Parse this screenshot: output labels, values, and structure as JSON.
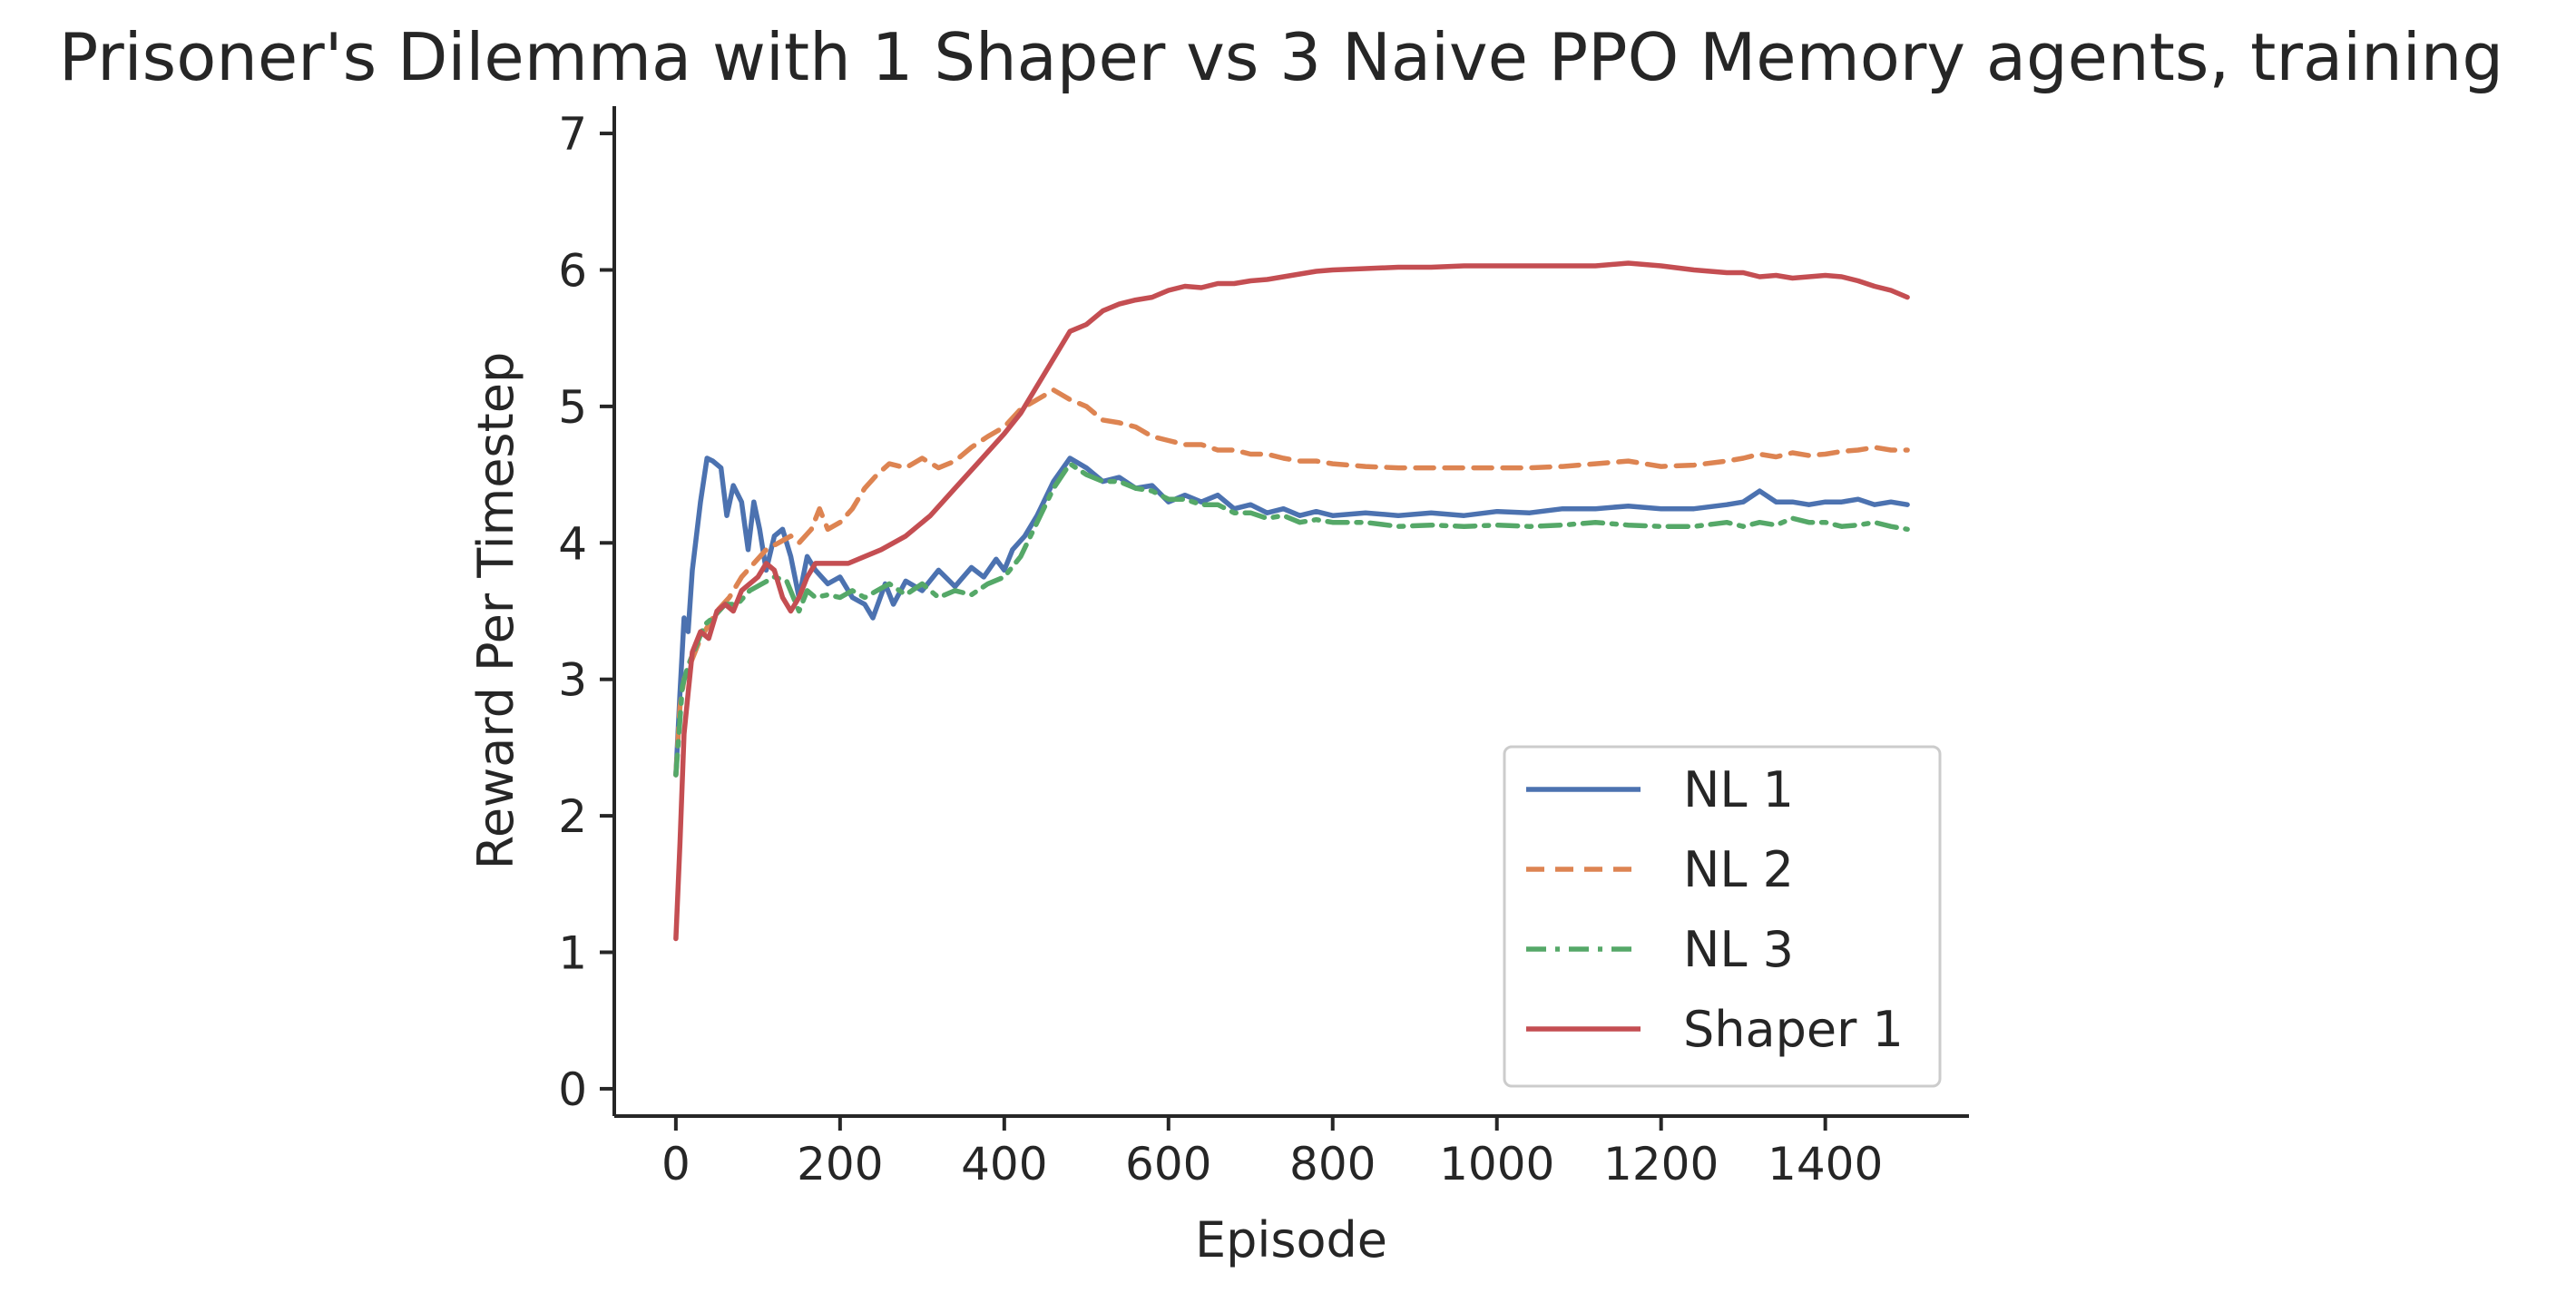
{
  "chart_data": {
    "type": "line",
    "title": "Prisoner's Dilemma with 1 Shaper vs 3 Naive PPO Memory agents, training",
    "xlabel": "Episode",
    "ylabel": "Reward Per Timestep",
    "xlim": [
      -75,
      1575
    ],
    "ylim": [
      -0.2,
      7.2
    ],
    "xticks": [
      0,
      200,
      400,
      600,
      800,
      1000,
      1200,
      1400
    ],
    "yticks": [
      0,
      1,
      2,
      3,
      4,
      5,
      6,
      7
    ],
    "grid": false,
    "legend_position": "lower-right",
    "series": [
      {
        "name": "NL 1",
        "color": "#4c72b0",
        "dash": "solid",
        "points": [
          [
            0,
            2.3
          ],
          [
            5,
            2.9
          ],
          [
            10,
            3.45
          ],
          [
            15,
            3.35
          ],
          [
            20,
            3.8
          ],
          [
            30,
            4.3
          ],
          [
            38,
            4.62
          ],
          [
            45,
            4.6
          ],
          [
            55,
            4.55
          ],
          [
            62,
            4.2
          ],
          [
            70,
            4.42
          ],
          [
            80,
            4.3
          ],
          [
            88,
            3.95
          ],
          [
            95,
            4.3
          ],
          [
            102,
            4.1
          ],
          [
            110,
            3.8
          ],
          [
            120,
            4.05
          ],
          [
            130,
            4.1
          ],
          [
            140,
            3.9
          ],
          [
            150,
            3.6
          ],
          [
            160,
            3.9
          ],
          [
            170,
            3.8
          ],
          [
            185,
            3.7
          ],
          [
            200,
            3.75
          ],
          [
            215,
            3.6
          ],
          [
            230,
            3.55
          ],
          [
            240,
            3.45
          ],
          [
            255,
            3.7
          ],
          [
            265,
            3.55
          ],
          [
            280,
            3.72
          ],
          [
            300,
            3.65
          ],
          [
            320,
            3.8
          ],
          [
            340,
            3.68
          ],
          [
            360,
            3.82
          ],
          [
            375,
            3.75
          ],
          [
            390,
            3.88
          ],
          [
            400,
            3.8
          ],
          [
            410,
            3.95
          ],
          [
            425,
            4.05
          ],
          [
            440,
            4.2
          ],
          [
            460,
            4.45
          ],
          [
            480,
            4.62
          ],
          [
            500,
            4.55
          ],
          [
            520,
            4.45
          ],
          [
            540,
            4.48
          ],
          [
            560,
            4.4
          ],
          [
            580,
            4.42
          ],
          [
            600,
            4.3
          ],
          [
            620,
            4.35
          ],
          [
            640,
            4.3
          ],
          [
            660,
            4.35
          ],
          [
            680,
            4.25
          ],
          [
            700,
            4.28
          ],
          [
            720,
            4.22
          ],
          [
            740,
            4.25
          ],
          [
            760,
            4.2
          ],
          [
            780,
            4.23
          ],
          [
            800,
            4.2
          ],
          [
            840,
            4.22
          ],
          [
            880,
            4.2
          ],
          [
            920,
            4.22
          ],
          [
            960,
            4.2
          ],
          [
            1000,
            4.23
          ],
          [
            1040,
            4.22
          ],
          [
            1080,
            4.25
          ],
          [
            1120,
            4.25
          ],
          [
            1160,
            4.27
          ],
          [
            1200,
            4.25
          ],
          [
            1240,
            4.25
          ],
          [
            1280,
            4.28
          ],
          [
            1300,
            4.3
          ],
          [
            1320,
            4.38
          ],
          [
            1340,
            4.3
          ],
          [
            1360,
            4.3
          ],
          [
            1380,
            4.28
          ],
          [
            1400,
            4.3
          ],
          [
            1420,
            4.3
          ],
          [
            1440,
            4.32
          ],
          [
            1460,
            4.28
          ],
          [
            1480,
            4.3
          ],
          [
            1500,
            4.28
          ]
        ]
      },
      {
        "name": "NL 2",
        "color": "#dd8452",
        "dash": "dashed",
        "points": [
          [
            0,
            2.3
          ],
          [
            5,
            2.8
          ],
          [
            10,
            3.0
          ],
          [
            20,
            3.15
          ],
          [
            30,
            3.3
          ],
          [
            40,
            3.4
          ],
          [
            50,
            3.5
          ],
          [
            65,
            3.6
          ],
          [
            80,
            3.75
          ],
          [
            95,
            3.85
          ],
          [
            110,
            3.95
          ],
          [
            125,
            4.0
          ],
          [
            140,
            4.05
          ],
          [
            150,
            4.0
          ],
          [
            165,
            4.1
          ],
          [
            175,
            4.25
          ],
          [
            185,
            4.1
          ],
          [
            200,
            4.15
          ],
          [
            215,
            4.25
          ],
          [
            230,
            4.4
          ],
          [
            245,
            4.5
          ],
          [
            260,
            4.58
          ],
          [
            280,
            4.55
          ],
          [
            300,
            4.62
          ],
          [
            320,
            4.55
          ],
          [
            340,
            4.6
          ],
          [
            360,
            4.7
          ],
          [
            380,
            4.78
          ],
          [
            400,
            4.85
          ],
          [
            420,
            4.98
          ],
          [
            440,
            5.05
          ],
          [
            460,
            5.12
          ],
          [
            480,
            5.05
          ],
          [
            500,
            5.0
          ],
          [
            520,
            4.9
          ],
          [
            540,
            4.88
          ],
          [
            560,
            4.85
          ],
          [
            580,
            4.78
          ],
          [
            600,
            4.75
          ],
          [
            620,
            4.72
          ],
          [
            640,
            4.72
          ],
          [
            660,
            4.68
          ],
          [
            680,
            4.68
          ],
          [
            700,
            4.65
          ],
          [
            720,
            4.65
          ],
          [
            740,
            4.62
          ],
          [
            760,
            4.6
          ],
          [
            780,
            4.6
          ],
          [
            800,
            4.58
          ],
          [
            840,
            4.56
          ],
          [
            880,
            4.55
          ],
          [
            920,
            4.55
          ],
          [
            960,
            4.55
          ],
          [
            1000,
            4.55
          ],
          [
            1040,
            4.55
          ],
          [
            1080,
            4.56
          ],
          [
            1120,
            4.58
          ],
          [
            1160,
            4.6
          ],
          [
            1200,
            4.56
          ],
          [
            1240,
            4.57
          ],
          [
            1280,
            4.6
          ],
          [
            1300,
            4.62
          ],
          [
            1320,
            4.65
          ],
          [
            1340,
            4.63
          ],
          [
            1360,
            4.66
          ],
          [
            1380,
            4.64
          ],
          [
            1400,
            4.65
          ],
          [
            1420,
            4.67
          ],
          [
            1440,
            4.68
          ],
          [
            1460,
            4.7
          ],
          [
            1480,
            4.68
          ],
          [
            1500,
            4.68
          ]
        ]
      },
      {
        "name": "NL 3",
        "color": "#55a868",
        "dash": "dashdot",
        "points": [
          [
            0,
            2.3
          ],
          [
            8,
            2.95
          ],
          [
            15,
            3.1
          ],
          [
            25,
            3.25
          ],
          [
            35,
            3.4
          ],
          [
            45,
            3.45
          ],
          [
            60,
            3.55
          ],
          [
            75,
            3.55
          ],
          [
            90,
            3.65
          ],
          [
            105,
            3.7
          ],
          [
            120,
            3.75
          ],
          [
            135,
            3.72
          ],
          [
            150,
            3.5
          ],
          [
            160,
            3.65
          ],
          [
            170,
            3.6
          ],
          [
            185,
            3.62
          ],
          [
            200,
            3.6
          ],
          [
            215,
            3.65
          ],
          [
            230,
            3.6
          ],
          [
            245,
            3.65
          ],
          [
            260,
            3.7
          ],
          [
            280,
            3.62
          ],
          [
            300,
            3.7
          ],
          [
            320,
            3.6
          ],
          [
            340,
            3.65
          ],
          [
            360,
            3.62
          ],
          [
            380,
            3.7
          ],
          [
            400,
            3.75
          ],
          [
            420,
            3.9
          ],
          [
            440,
            4.15
          ],
          [
            460,
            4.4
          ],
          [
            480,
            4.58
          ],
          [
            500,
            4.5
          ],
          [
            520,
            4.45
          ],
          [
            540,
            4.45
          ],
          [
            560,
            4.4
          ],
          [
            580,
            4.38
          ],
          [
            600,
            4.32
          ],
          [
            620,
            4.32
          ],
          [
            640,
            4.28
          ],
          [
            660,
            4.28
          ],
          [
            680,
            4.22
          ],
          [
            700,
            4.22
          ],
          [
            720,
            4.18
          ],
          [
            740,
            4.2
          ],
          [
            760,
            4.15
          ],
          [
            780,
            4.17
          ],
          [
            800,
            4.15
          ],
          [
            840,
            4.15
          ],
          [
            880,
            4.12
          ],
          [
            920,
            4.13
          ],
          [
            960,
            4.12
          ],
          [
            1000,
            4.13
          ],
          [
            1040,
            4.12
          ],
          [
            1080,
            4.13
          ],
          [
            1120,
            4.15
          ],
          [
            1160,
            4.13
          ],
          [
            1200,
            4.12
          ],
          [
            1240,
            4.12
          ],
          [
            1280,
            4.15
          ],
          [
            1300,
            4.12
          ],
          [
            1320,
            4.15
          ],
          [
            1340,
            4.13
          ],
          [
            1360,
            4.18
          ],
          [
            1380,
            4.15
          ],
          [
            1400,
            4.15
          ],
          [
            1420,
            4.12
          ],
          [
            1440,
            4.13
          ],
          [
            1460,
            4.15
          ],
          [
            1480,
            4.12
          ],
          [
            1500,
            4.1
          ]
        ]
      },
      {
        "name": "Shaper 1",
        "color": "#c44e52",
        "dash": "solid",
        "points": [
          [
            0,
            1.1
          ],
          [
            5,
            1.8
          ],
          [
            10,
            2.6
          ],
          [
            15,
            2.9
          ],
          [
            20,
            3.2
          ],
          [
            30,
            3.35
          ],
          [
            40,
            3.3
          ],
          [
            50,
            3.5
          ],
          [
            60,
            3.55
          ],
          [
            70,
            3.5
          ],
          [
            80,
            3.65
          ],
          [
            90,
            3.7
          ],
          [
            100,
            3.75
          ],
          [
            110,
            3.85
          ],
          [
            120,
            3.8
          ],
          [
            130,
            3.6
          ],
          [
            140,
            3.5
          ],
          [
            150,
            3.6
          ],
          [
            160,
            3.75
          ],
          [
            170,
            3.85
          ],
          [
            190,
            3.85
          ],
          [
            210,
            3.85
          ],
          [
            230,
            3.9
          ],
          [
            250,
            3.95
          ],
          [
            280,
            4.05
          ],
          [
            310,
            4.2
          ],
          [
            340,
            4.4
          ],
          [
            370,
            4.6
          ],
          [
            400,
            4.8
          ],
          [
            420,
            4.95
          ],
          [
            440,
            5.15
          ],
          [
            460,
            5.35
          ],
          [
            480,
            5.55
          ],
          [
            500,
            5.6
          ],
          [
            520,
            5.7
          ],
          [
            540,
            5.75
          ],
          [
            560,
            5.78
          ],
          [
            580,
            5.8
          ],
          [
            600,
            5.85
          ],
          [
            620,
            5.88
          ],
          [
            640,
            5.87
          ],
          [
            660,
            5.9
          ],
          [
            680,
            5.9
          ],
          [
            700,
            5.92
          ],
          [
            720,
            5.93
          ],
          [
            740,
            5.95
          ],
          [
            760,
            5.97
          ],
          [
            780,
            5.99
          ],
          [
            800,
            6.0
          ],
          [
            840,
            6.01
          ],
          [
            880,
            6.02
          ],
          [
            920,
            6.02
          ],
          [
            960,
            6.03
          ],
          [
            1000,
            6.03
          ],
          [
            1040,
            6.03
          ],
          [
            1080,
            6.03
          ],
          [
            1120,
            6.03
          ],
          [
            1160,
            6.05
          ],
          [
            1200,
            6.03
          ],
          [
            1240,
            6.0
          ],
          [
            1280,
            5.98
          ],
          [
            1300,
            5.98
          ],
          [
            1320,
            5.95
          ],
          [
            1340,
            5.96
          ],
          [
            1360,
            5.94
          ],
          [
            1380,
            5.95
          ],
          [
            1400,
            5.96
          ],
          [
            1420,
            5.95
          ],
          [
            1440,
            5.92
          ],
          [
            1460,
            5.88
          ],
          [
            1480,
            5.85
          ],
          [
            1500,
            5.8
          ]
        ]
      }
    ]
  }
}
